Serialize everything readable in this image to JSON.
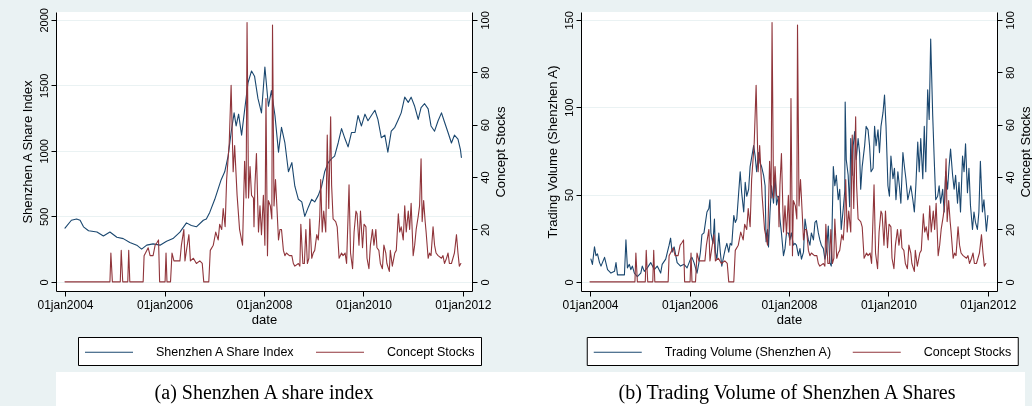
{
  "chart_data": [
    {
      "type": "line",
      "title": "(a) Shenzhen A share index",
      "xlabel": "date",
      "ylabel": "Shenzhen A Share Index",
      "y2label": "Concept Stocks",
      "xlim": [
        "2003-10-27",
        "2012-03-08"
      ],
      "xticks": [
        {
          "value": "2004-01-01",
          "label": "01jan2004"
        },
        {
          "value": "2006-01-01",
          "label": "01jan2006"
        },
        {
          "value": "2008-01-01",
          "label": "01jan2008"
        },
        {
          "value": "2010-01-01",
          "label": "01jan2010"
        },
        {
          "value": "2012-01-01",
          "label": "01jan2012"
        }
      ],
      "ylim": [
        -70,
        2060
      ],
      "yticks": [
        0,
        500,
        1000,
        1500,
        2000
      ],
      "y2lim": [
        -3.5,
        103
      ],
      "y2ticks": [
        0,
        20,
        40,
        60,
        80,
        100
      ],
      "grid": "y",
      "legend": "bottom",
      "line_style": "solid",
      "series": [
        {
          "name": "Shenzhen A Share Index",
          "color": "#1a476f",
          "x": [
            "2004-01-01",
            "2004-02-17",
            "2004-03-26",
            "2004-04-21",
            "2004-05-16",
            "2004-06-22",
            "2004-08-23",
            "2004-10-09",
            "2004-11-26",
            "2005-01-16",
            "2005-03-04",
            "2005-04-21",
            "2005-06-11",
            "2005-07-17",
            "2005-08-23",
            "2005-10-09",
            "2005-11-29",
            "2006-01-16",
            "2006-03-04",
            "2006-04-24",
            "2006-06-11",
            "2006-07-17",
            "2006-08-23",
            "2006-10-13",
            "2006-11-04",
            "2006-11-29",
            "2007-01-05",
            "2007-01-30",
            "2007-02-21",
            "2007-03-19",
            "2007-04-13",
            "2007-05-05",
            "2007-05-27",
            "2007-06-11",
            "2007-06-29",
            "2007-07-21",
            "2007-08-12",
            "2007-09-06",
            "2007-10-02",
            "2007-10-24",
            "2007-11-18",
            "2007-12-14",
            "2008-01-08",
            "2008-02-03",
            "2008-02-25",
            "2008-03-22",
            "2008-04-17",
            "2008-05-09",
            "2008-06-03",
            "2008-06-29",
            "2008-07-24",
            "2008-08-15",
            "2008-09-10",
            "2008-10-05",
            "2008-10-27",
            "2008-11-22",
            "2008-12-17",
            "2009-01-08",
            "2009-02-03",
            "2009-02-28",
            "2009-03-22",
            "2009-04-17",
            "2009-05-12",
            "2009-06-03",
            "2009-06-29",
            "2009-07-24",
            "2009-08-19",
            "2009-09-10",
            "2009-10-05",
            "2009-10-31",
            "2009-11-22",
            "2009-12-17",
            "2010-01-12",
            "2010-02-03",
            "2010-02-28",
            "2010-03-26",
            "2010-04-17",
            "2010-05-12",
            "2010-06-07",
            "2010-06-29",
            "2010-07-24",
            "2010-08-19",
            "2010-09-14",
            "2010-10-05",
            "2010-10-31",
            "2010-11-26",
            "2010-12-17",
            "2011-01-12",
            "2011-02-07",
            "2011-02-28",
            "2011-03-26",
            "2011-04-21",
            "2011-05-12",
            "2011-06-07",
            "2011-07-03",
            "2011-07-28",
            "2011-08-19",
            "2011-09-14",
            "2011-10-09",
            "2011-10-31",
            "2011-11-26",
            "2011-12-14",
            "2011-12-21"
          ],
          "values": [
            410,
            470,
            480,
            470,
            420,
            390,
            380,
            350,
            380,
            340,
            330,
            300,
            280,
            250,
            280,
            290,
            280,
            310,
            330,
            380,
            450,
            430,
            420,
            470,
            480,
            530,
            630,
            710,
            780,
            840,
            960,
            1140,
            1290,
            1190,
            1280,
            1120,
            1310,
            1520,
            1610,
            1570,
            1400,
            1290,
            1640,
            1340,
            1460,
            1270,
            990,
            1180,
            1060,
            840,
            910,
            730,
            630,
            610,
            500,
            570,
            630,
            610,
            660,
            730,
            840,
            910,
            940,
            960,
            1060,
            1170,
            1090,
            1030,
            1140,
            1140,
            1270,
            1190,
            1280,
            1230,
            1270,
            1310,
            1240,
            1100,
            1120,
            990,
            1150,
            1180,
            1240,
            1290,
            1410,
            1370,
            1410,
            1340,
            1240,
            1330,
            1360,
            1320,
            1190,
            1150,
            1230,
            1290,
            1220,
            1140,
            1060,
            1120,
            1090,
            1010,
            950
          ]
        },
        {
          "name": "Concept Stocks",
          "color": "#90353b",
          "axis": "y2",
          "x": [
            "2004-01-01",
            "2004-11-26",
            "2004-12-03",
            "2004-12-14",
            "2005-02-10",
            "2005-02-17",
            "2005-02-28",
            "2005-04-06",
            "2005-04-13",
            "2005-04-21",
            "2005-07-28",
            "2005-08-04",
            "2005-09-03",
            "2005-09-17",
            "2005-10-09",
            "2005-10-24",
            "2005-11-07",
            "2005-11-18",
            "2005-11-26",
            "2006-01-05",
            "2006-01-12",
            "2006-01-19",
            "2006-02-14",
            "2006-02-25",
            "2006-03-11",
            "2006-04-24",
            "2006-05-05",
            "2006-05-23",
            "2006-05-31",
            "2006-06-14",
            "2006-06-29",
            "2006-07-10",
            "2006-08-01",
            "2006-08-23",
            "2006-09-17",
            "2006-10-05",
            "2006-10-16",
            "2006-11-22",
            "2006-12-03",
            "2006-12-25",
            "2007-01-12",
            "2007-01-30",
            "2007-02-10",
            "2007-02-25",
            "2007-03-08",
            "2007-03-22",
            "2007-04-02",
            "2007-04-21",
            "2007-05-05",
            "2007-05-20",
            "2007-05-31",
            "2007-06-18",
            "2007-07-06",
            "2007-07-28",
            "2007-08-12",
            "2007-08-23",
            "2007-08-30",
            "2007-09-10",
            "2007-09-21",
            "2007-10-02",
            "2007-10-16",
            "2007-10-20",
            "2007-10-27",
            "2007-11-07",
            "2007-11-22",
            "2007-12-03",
            "2007-12-14",
            "2007-12-28",
            "2008-01-08",
            "2008-01-16",
            "2008-01-27",
            "2008-02-03",
            "2008-02-17",
            "2008-02-28",
            "2008-03-04",
            "2008-03-15",
            "2008-03-26",
            "2008-04-02",
            "2008-04-17",
            "2008-04-28",
            "2008-05-09",
            "2008-05-23",
            "2008-06-03",
            "2008-06-14",
            "2008-07-06",
            "2008-07-24",
            "2008-08-04",
            "2008-08-15",
            "2008-09-10",
            "2008-09-21",
            "2008-09-28",
            "2008-10-13",
            "2008-10-24",
            "2008-11-04",
            "2008-11-15",
            "2008-11-26",
            "2008-12-03",
            "2008-12-17",
            "2008-12-28",
            "2009-01-08",
            "2009-01-23",
            "2009-02-03",
            "2009-02-14",
            "2009-02-21",
            "2009-03-04",
            "2009-03-15",
            "2009-03-30",
            "2009-04-10",
            "2009-04-21",
            "2009-05-05",
            "2009-05-12",
            "2009-05-23",
            "2009-06-11",
            "2009-06-22",
            "2009-07-06",
            "2009-07-24",
            "2009-08-04",
            "2009-08-19",
            "2009-08-30",
            "2009-09-17",
            "2009-09-28",
            "2009-10-13",
            "2009-10-24",
            "2009-11-07",
            "2009-11-15",
            "2009-11-29",
            "2009-12-10",
            "2009-12-25",
            "2010-01-05",
            "2010-01-19",
            "2010-01-27",
            "2010-02-10",
            "2010-02-21",
            "2010-03-08",
            "2010-03-19",
            "2010-04-02",
            "2010-04-10",
            "2010-04-24",
            "2010-05-05",
            "2010-05-20",
            "2010-05-31",
            "2010-06-14",
            "2010-06-22",
            "2010-07-10",
            "2010-07-17",
            "2010-08-01",
            "2010-08-19",
            "2010-08-30",
            "2010-09-14",
            "2010-09-24",
            "2010-10-05",
            "2010-10-20",
            "2010-10-31",
            "2010-11-11",
            "2010-11-26",
            "2010-12-06",
            "2010-12-17",
            "2011-01-01",
            "2011-01-12",
            "2011-01-23",
            "2011-02-07",
            "2011-02-17",
            "2011-02-28",
            "2011-03-08",
            "2011-03-19",
            "2011-03-30",
            "2011-04-06",
            "2011-04-21",
            "2011-05-01",
            "2011-05-12",
            "2011-05-27",
            "2011-06-07",
            "2011-06-18",
            "2011-07-03",
            "2011-07-28",
            "2011-08-08",
            "2011-08-19",
            "2011-09-03",
            "2011-09-14",
            "2011-09-24",
            "2011-10-09",
            "2011-10-20",
            "2011-10-31",
            "2011-11-15",
            "2011-11-26",
            "2011-12-06",
            "2011-12-17"
          ],
          "values": [
            0,
            0,
            11,
            0,
            0,
            12,
            0,
            0,
            12,
            0,
            0,
            10,
            13,
            10,
            10,
            14,
            15,
            16,
            0,
            0,
            11,
            0,
            0,
            11,
            8,
            8,
            14,
            20,
            8,
            13,
            18,
            8,
            9,
            7,
            8,
            7,
            0,
            0,
            12,
            14,
            19,
            16,
            22,
            20,
            28,
            21,
            39,
            53,
            75,
            42,
            52,
            33,
            20,
            14,
            46,
            32,
            99,
            32,
            44,
            33,
            32,
            21,
            37,
            49,
            19,
            29,
            18,
            33,
            14,
            70,
            10,
            31,
            29,
            24,
            98,
            29,
            39,
            32,
            16,
            20,
            20,
            12,
            10,
            11,
            10,
            10,
            7,
            6,
            7,
            6,
            22,
            7,
            7,
            20,
            7,
            9,
            24,
            9,
            11,
            12,
            18,
            16,
            25,
            39,
            19,
            27,
            19,
            56,
            28,
            63,
            37,
            24,
            23,
            21,
            9,
            11,
            10,
            11,
            7,
            37,
            11,
            5,
            19,
            27,
            26,
            14,
            27,
            13,
            22,
            21,
            9,
            5,
            14,
            20,
            14,
            20,
            13,
            12,
            7,
            5,
            14,
            11,
            7,
            4,
            12,
            6,
            11,
            12,
            26,
            19,
            21,
            16,
            29,
            19,
            27,
            20,
            30,
            10,
            14,
            20,
            25,
            29,
            47,
            23,
            31,
            23,
            19,
            9,
            11,
            10,
            21,
            14,
            11,
            10,
            9,
            10,
            7,
            9,
            11,
            7,
            7,
            9,
            11,
            18,
            11,
            6,
            7
          ]
        }
      ]
    },
    {
      "type": "line",
      "title": "(b) Trading Volume of Shenzhen A Shares",
      "xlabel": "date",
      "ylabel": "Trading Volume (Shenzhen A)",
      "y2label": "Concept Stocks",
      "xlim": [
        "2003-10-27",
        "2012-03-08"
      ],
      "xticks": [
        {
          "value": "2004-01-01",
          "label": "01jan2004"
        },
        {
          "value": "2006-01-01",
          "label": "01jan2006"
        },
        {
          "value": "2008-01-01",
          "label": "01jan2008"
        },
        {
          "value": "2010-01-01",
          "label": "01jan2010"
        },
        {
          "value": "2012-01-01",
          "label": "01jan2012"
        }
      ],
      "ylim": [
        -5.25,
        154.5
      ],
      "yticks": [
        0,
        50,
        100,
        150
      ],
      "y2lim": [
        -3.5,
        103
      ],
      "y2ticks": [
        0,
        20,
        40,
        60,
        80,
        100
      ],
      "grid": "y",
      "legend": "bottom",
      "line_style": "solid",
      "series": [
        {
          "name": "Trading Volume (Shenzhen A)",
          "color": "#1a476f",
          "x": [
            "2004-01-08",
            "2004-01-19",
            "2004-02-03",
            "2004-02-14",
            "2004-02-25",
            "2004-03-11",
            "2004-03-22",
            "2004-04-17",
            "2004-05-09",
            "2004-06-03",
            "2004-06-29",
            "2004-07-10",
            "2004-07-21",
            "2004-09-10",
            "2004-09-21",
            "2004-10-02",
            "2004-10-16",
            "2004-10-27",
            "2004-11-07",
            "2004-11-22",
            "2004-12-14",
            "2005-01-08",
            "2005-01-19",
            "2005-02-03",
            "2005-02-25",
            "2005-03-22",
            "2005-04-17",
            "2005-05-09",
            "2005-06-03",
            "2005-06-14",
            "2005-07-10",
            "2005-08-04",
            "2005-08-15",
            "2005-08-26",
            "2005-09-10",
            "2005-10-02",
            "2005-10-27",
            "2005-11-22",
            "2005-12-14",
            "2006-01-08",
            "2006-01-19",
            "2006-02-03",
            "2006-02-25",
            "2006-03-11",
            "2006-03-22",
            "2006-04-02",
            "2006-04-17",
            "2006-04-28",
            "2006-05-09",
            "2006-05-23",
            "2006-05-31",
            "2006-06-07",
            "2006-06-22",
            "2006-07-03",
            "2006-07-10",
            "2006-07-21",
            "2006-08-04",
            "2006-08-15",
            "2006-08-26",
            "2006-09-10",
            "2006-09-21",
            "2006-10-02",
            "2006-10-16",
            "2006-10-27",
            "2006-11-07",
            "2006-11-22",
            "2006-12-03",
            "2006-12-14",
            "2007-01-08",
            "2007-01-19",
            "2007-02-03",
            "2007-02-14",
            "2007-02-25",
            "2007-03-11",
            "2007-03-22",
            "2007-04-17",
            "2007-04-28",
            "2007-05-09",
            "2007-05-23",
            "2007-06-03",
            "2007-06-14",
            "2007-06-29",
            "2007-07-10",
            "2007-07-17",
            "2007-07-28",
            "2007-08-04",
            "2007-08-15",
            "2007-08-26",
            "2007-09-10",
            "2007-09-21",
            "2007-10-02",
            "2007-10-16",
            "2007-10-27",
            "2007-11-07",
            "2007-11-22",
            "2007-12-03",
            "2007-12-14",
            "2007-12-28",
            "2008-01-08",
            "2008-01-19",
            "2008-02-03",
            "2008-02-14",
            "2008-02-25",
            "2008-03-11",
            "2008-03-22",
            "2008-04-02",
            "2008-04-17",
            "2008-04-28",
            "2008-05-09",
            "2008-05-23",
            "2008-06-03",
            "2008-06-14",
            "2008-06-29",
            "2008-07-10",
            "2008-07-21",
            "2008-08-04",
            "2008-08-15",
            "2008-08-26",
            "2008-09-10",
            "2008-09-21",
            "2008-10-02",
            "2008-10-16",
            "2008-10-27",
            "2008-11-07",
            "2008-11-22",
            "2008-12-03",
            "2008-12-14",
            "2008-12-28",
            "2009-01-08",
            "2009-01-19",
            "2009-02-03",
            "2009-02-14",
            "2009-02-17",
            "2009-02-25",
            "2009-03-11",
            "2009-03-22",
            "2009-03-30",
            "2009-04-10",
            "2009-04-17",
            "2009-04-28",
            "2009-05-09",
            "2009-05-23",
            "2009-06-03",
            "2009-06-11",
            "2009-06-22",
            "2009-07-10",
            "2009-07-21",
            "2009-08-04",
            "2009-08-15",
            "2009-08-26",
            "2009-09-10",
            "2009-09-21",
            "2009-10-02",
            "2009-10-16",
            "2009-10-27",
            "2009-11-07",
            "2009-11-22",
            "2009-12-03",
            "2009-12-14",
            "2009-12-28",
            "2010-01-08",
            "2010-01-19",
            "2010-02-03",
            "2010-02-14",
            "2010-02-25",
            "2010-03-11",
            "2010-03-22",
            "2010-04-02",
            "2010-04-17",
            "2010-04-28",
            "2010-05-09",
            "2010-05-23",
            "2010-06-03",
            "2010-06-14",
            "2010-06-29",
            "2010-07-10",
            "2010-07-21",
            "2010-08-04",
            "2010-08-15",
            "2010-08-26",
            "2010-09-10",
            "2010-09-21",
            "2010-10-02",
            "2010-10-16",
            "2010-10-27",
            "2010-11-07",
            "2010-11-22",
            "2010-12-03",
            "2010-12-14",
            "2010-12-28",
            "2011-01-08",
            "2011-01-19",
            "2011-02-03",
            "2011-02-14",
            "2011-02-25",
            "2011-03-11",
            "2011-03-22",
            "2011-04-02",
            "2011-04-17",
            "2011-04-28",
            "2011-05-09",
            "2011-05-23",
            "2011-06-03",
            "2011-06-14",
            "2011-06-29",
            "2011-07-10",
            "2011-07-21",
            "2011-08-04",
            "2011-08-15",
            "2011-08-26",
            "2011-09-10",
            "2011-09-21",
            "2011-10-02",
            "2011-10-16",
            "2011-10-27",
            "2011-11-07",
            "2011-11-22",
            "2011-12-03",
            "2011-12-14",
            "2011-12-21",
            "2012-01-01"
          ],
          "values": [
            13,
            10,
            20,
            15,
            16,
            11,
            9,
            14,
            7,
            5,
            6,
            11,
            4,
            4,
            24,
            8,
            10,
            7,
            9,
            5,
            3,
            5,
            9,
            6,
            8,
            11,
            7,
            9,
            5,
            10,
            13,
            21,
            25,
            17,
            20,
            11,
            9,
            10,
            8,
            13,
            14,
            11,
            5,
            11,
            17,
            27,
            28,
            34,
            40,
            42,
            47,
            28,
            22,
            36,
            17,
            13,
            28,
            17,
            9,
            15,
            19,
            22,
            17,
            22,
            21,
            38,
            34,
            36,
            63,
            51,
            40,
            57,
            49,
            53,
            66,
            78,
            72,
            63,
            74,
            68,
            66,
            61,
            55,
            23,
            30,
            20,
            40,
            55,
            45,
            61,
            44,
            49,
            36,
            28,
            15,
            19,
            28,
            28,
            24,
            28,
            21,
            22,
            21,
            15,
            19,
            13,
            17,
            36,
            30,
            24,
            21,
            28,
            24,
            34,
            35,
            28,
            24,
            21,
            19,
            13,
            17,
            32,
            11,
            9,
            66,
            55,
            61,
            47,
            53,
            30,
            42,
            52,
            103,
            70,
            61,
            43,
            82,
            61,
            78,
            86,
            70,
            82,
            74,
            53,
            66,
            78,
            89,
            87,
            78,
            63,
            65,
            89,
            78,
            87,
            74,
            89,
            97,
            107,
            89,
            55,
            49,
            72,
            59,
            65,
            47,
            63,
            55,
            45,
            74,
            66,
            59,
            47,
            51,
            55,
            47,
            40,
            55,
            80,
            63,
            82,
            59,
            89,
            63,
            110,
            93,
            139,
            95,
            70,
            47,
            49,
            55,
            45,
            53,
            40,
            63,
            53,
            66,
            76,
            61,
            53,
            61,
            45,
            57,
            40,
            72,
            63,
            79,
            51,
            65,
            44,
            30,
            40,
            34,
            30,
            40,
            69,
            40,
            47,
            36,
            29,
            38
          ]
        },
        {
          "name": "Concept Stocks",
          "color": "#90353b",
          "axis": "y2",
          "x": [
            "2004-01-01",
            "2004-11-26",
            "2004-12-03",
            "2004-12-14",
            "2005-02-10",
            "2005-02-17",
            "2005-02-28",
            "2005-04-06",
            "2005-04-13",
            "2005-04-21",
            "2005-07-28",
            "2005-08-04",
            "2005-09-03",
            "2005-09-17",
            "2005-10-09",
            "2005-10-24",
            "2005-11-07",
            "2005-11-18",
            "2005-11-26",
            "2006-01-05",
            "2006-01-12",
            "2006-01-19",
            "2006-02-14",
            "2006-02-25",
            "2006-03-11",
            "2006-04-24",
            "2006-05-05",
            "2006-05-23",
            "2006-05-31",
            "2006-06-14",
            "2006-06-29",
            "2006-07-10",
            "2006-08-01",
            "2006-08-23",
            "2006-09-17",
            "2006-10-05",
            "2006-10-16",
            "2006-11-22",
            "2006-12-03",
            "2006-12-25",
            "2007-01-12",
            "2007-01-30",
            "2007-02-10",
            "2007-02-25",
            "2007-03-08",
            "2007-03-22",
            "2007-04-02",
            "2007-04-21",
            "2007-05-05",
            "2007-05-20",
            "2007-05-31",
            "2007-06-18",
            "2007-07-06",
            "2007-07-28",
            "2007-08-12",
            "2007-08-23",
            "2007-08-30",
            "2007-09-10",
            "2007-09-21",
            "2007-10-02",
            "2007-10-16",
            "2007-10-20",
            "2007-10-27",
            "2007-11-07",
            "2007-11-22",
            "2007-12-03",
            "2007-12-14",
            "2007-12-28",
            "2008-01-08",
            "2008-01-16",
            "2008-01-27",
            "2008-02-03",
            "2008-02-17",
            "2008-02-28",
            "2008-03-04",
            "2008-03-15",
            "2008-03-26",
            "2008-04-02",
            "2008-04-17",
            "2008-04-28",
            "2008-05-09",
            "2008-05-23",
            "2008-06-03",
            "2008-06-14",
            "2008-07-06",
            "2008-07-24",
            "2008-08-04",
            "2008-08-15",
            "2008-09-10",
            "2008-09-21",
            "2008-09-28",
            "2008-10-13",
            "2008-10-24",
            "2008-11-04",
            "2008-11-15",
            "2008-11-26",
            "2008-12-03",
            "2008-12-17",
            "2008-12-28",
            "2009-01-08",
            "2009-01-23",
            "2009-02-03",
            "2009-02-14",
            "2009-02-21",
            "2009-03-04",
            "2009-03-15",
            "2009-03-30",
            "2009-04-10",
            "2009-04-21",
            "2009-05-05",
            "2009-05-12",
            "2009-05-23",
            "2009-06-11",
            "2009-06-22",
            "2009-07-06",
            "2009-07-24",
            "2009-08-04",
            "2009-08-19",
            "2009-08-30",
            "2009-09-17",
            "2009-09-28",
            "2009-10-13",
            "2009-10-24",
            "2009-11-07",
            "2009-11-15",
            "2009-11-29",
            "2009-12-10",
            "2009-12-25",
            "2010-01-05",
            "2010-01-19",
            "2010-01-27",
            "2010-02-10",
            "2010-02-21",
            "2010-03-08",
            "2010-03-19",
            "2010-04-02",
            "2010-04-10",
            "2010-04-24",
            "2010-05-05",
            "2010-05-20",
            "2010-05-31",
            "2010-06-14",
            "2010-06-22",
            "2010-07-10",
            "2010-07-17",
            "2010-08-01",
            "2010-08-19",
            "2010-08-30",
            "2010-09-14",
            "2010-09-24",
            "2010-10-05",
            "2010-10-20",
            "2010-10-31",
            "2010-11-11",
            "2010-11-26",
            "2010-12-06",
            "2010-12-17",
            "2011-01-01",
            "2011-01-12",
            "2011-01-23",
            "2011-02-07",
            "2011-02-17",
            "2011-02-28",
            "2011-03-08",
            "2011-03-19",
            "2011-03-30",
            "2011-04-06",
            "2011-04-21",
            "2011-05-01",
            "2011-05-12",
            "2011-05-27",
            "2011-06-07",
            "2011-06-18",
            "2011-07-03",
            "2011-07-28",
            "2011-08-08",
            "2011-08-19",
            "2011-09-03",
            "2011-09-14",
            "2011-09-24",
            "2011-10-09",
            "2011-10-20",
            "2011-10-31",
            "2011-11-15",
            "2011-11-26",
            "2011-12-06",
            "2011-12-17"
          ],
          "values": [
            0,
            0,
            11,
            0,
            0,
            12,
            0,
            0,
            12,
            0,
            0,
            10,
            13,
            10,
            10,
            14,
            15,
            16,
            0,
            0,
            11,
            0,
            0,
            11,
            8,
            8,
            14,
            20,
            8,
            13,
            18,
            8,
            9,
            7,
            8,
            7,
            0,
            0,
            12,
            14,
            19,
            16,
            22,
            20,
            28,
            21,
            39,
            53,
            75,
            42,
            52,
            33,
            20,
            14,
            46,
            32,
            99,
            32,
            44,
            33,
            32,
            21,
            37,
            49,
            19,
            29,
            18,
            33,
            14,
            70,
            10,
            31,
            29,
            24,
            98,
            29,
            39,
            32,
            16,
            20,
            20,
            12,
            10,
            11,
            10,
            10,
            7,
            6,
            7,
            6,
            22,
            7,
            7,
            20,
            7,
            9,
            24,
            9,
            11,
            12,
            18,
            16,
            25,
            39,
            19,
            27,
            19,
            56,
            28,
            63,
            37,
            24,
            23,
            21,
            9,
            11,
            10,
            11,
            7,
            37,
            11,
            5,
            19,
            27,
            26,
            14,
            27,
            13,
            22,
            21,
            9,
            5,
            14,
            20,
            14,
            20,
            13,
            12,
            7,
            5,
            14,
            11,
            7,
            4,
            12,
            6,
            11,
            12,
            26,
            19,
            21,
            16,
            29,
            19,
            27,
            20,
            30,
            10,
            14,
            20,
            25,
            29,
            47,
            23,
            31,
            23,
            19,
            9,
            11,
            10,
            21,
            14,
            11,
            10,
            9,
            10,
            7,
            9,
            11,
            7,
            7,
            9,
            11,
            18,
            11,
            6,
            7
          ]
        }
      ]
    }
  ]
}
